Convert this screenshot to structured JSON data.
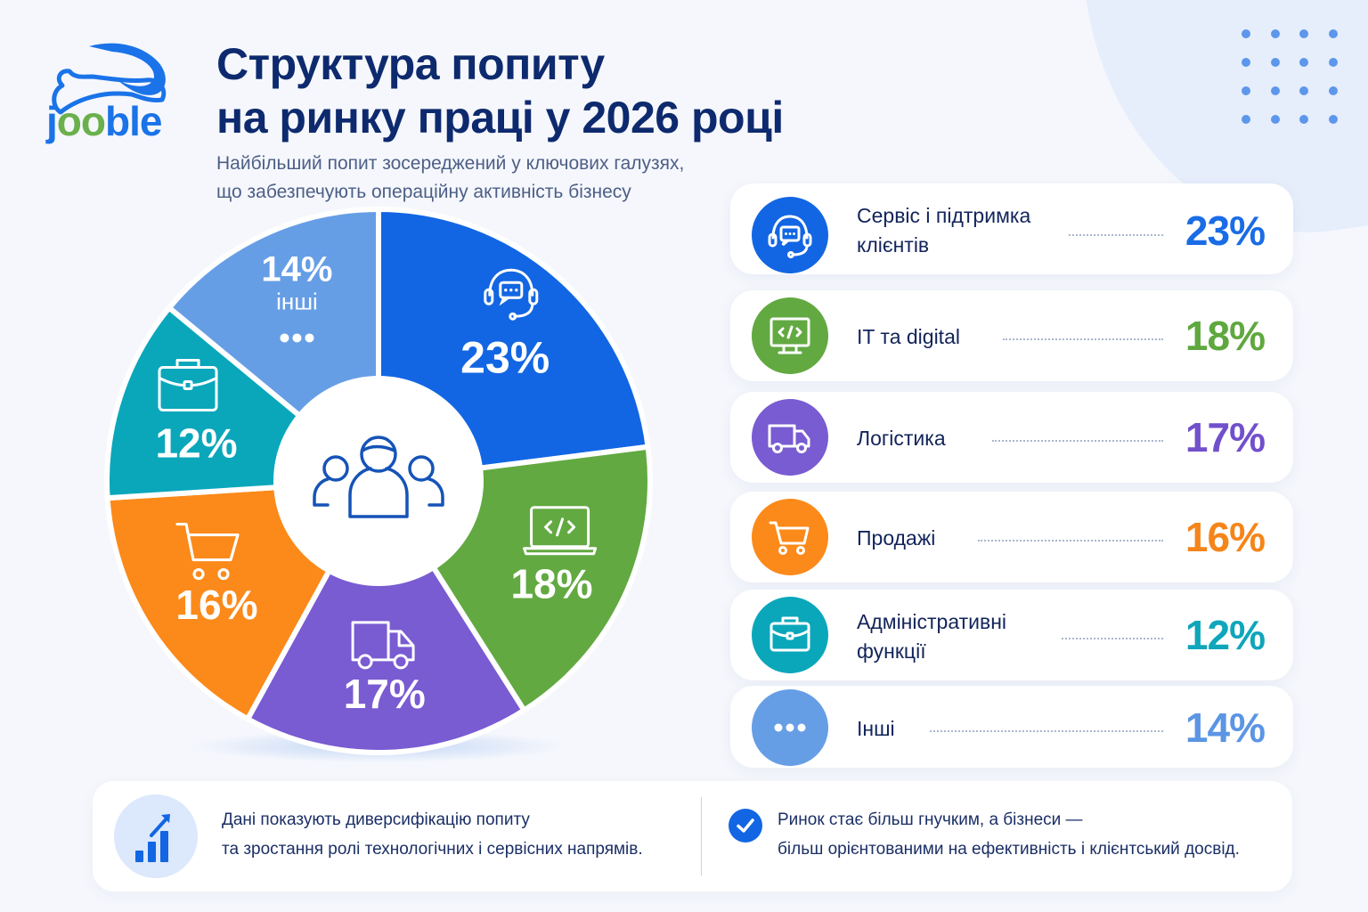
{
  "brand": {
    "name": "jooble",
    "colors": {
      "blue": "#1a73e8",
      "green": "#6ab04c"
    }
  },
  "header": {
    "title_line1": "Структура попиту",
    "title_line2": "на ринку праці у 2026 році",
    "subtitle_line1": "Найбільший попит зосереджений у ключових галузях,",
    "subtitle_line2": "що забезпечують операційну активність бізнесу"
  },
  "chart_data": {
    "type": "pie",
    "title": "Структура попиту на ринку праці у 2026 році",
    "donut": true,
    "center_icon": "people-group-icon",
    "slices": [
      {
        "label": "Сервіс і підтримка клієнтів",
        "value": 23,
        "display": "23%",
        "color": "#1266e3",
        "icon": "headset-icon"
      },
      {
        "label": "IT та digital",
        "value": 18,
        "display": "18%",
        "color": "#62a941",
        "icon": "laptop-code-icon"
      },
      {
        "label": "Логістика",
        "value": 17,
        "display": "17%",
        "color": "#795bd2",
        "icon": "truck-icon"
      },
      {
        "label": "Продажі",
        "value": 16,
        "display": "16%",
        "color": "#fb8a1a",
        "icon": "cart-icon"
      },
      {
        "label": "Адміністративні функції",
        "value": 12,
        "display": "12%",
        "color": "#0aa7bb",
        "icon": "briefcase-icon"
      },
      {
        "label": "Інші",
        "value": 14,
        "display": "14%",
        "color": "#669ee6",
        "icon": "dots-icon",
        "inner_label": "інші"
      }
    ]
  },
  "legend": [
    {
      "line1": "Сервіс і підтримка",
      "line2": "клієнтів",
      "pct": "23%",
      "color": "#1266e3",
      "pct_color": "#1a6ce6"
    },
    {
      "line1": "IT та digital",
      "line2": "",
      "pct": "18%",
      "color": "#62a941",
      "pct_color": "#5fa83f"
    },
    {
      "line1": "Логістика",
      "line2": "",
      "pct": "17%",
      "color": "#795bd2",
      "pct_color": "#7250cc"
    },
    {
      "line1": "Продажі",
      "line2": "",
      "pct": "16%",
      "color": "#fb8a1a",
      "pct_color": "#f5851a"
    },
    {
      "line1": "Адміністративні",
      "line2": "функції",
      "pct": "12%",
      "color": "#0aa7bb",
      "pct_color": "#0ea6ba"
    },
    {
      "line1": "Інші",
      "line2": "",
      "pct": "14%",
      "color": "#669ee6",
      "pct_color": "#5b95e4"
    }
  ],
  "footer": {
    "left_line1": "Дані показують диверсифікацію попиту",
    "left_line2": "та зростання ролі технологічних і сервісних напрямів.",
    "right_line1": "Ринок стає більш гнучким, а бізнеси —",
    "right_line2": "більш орієнтованими на ефективність і клієнтський досвід."
  }
}
